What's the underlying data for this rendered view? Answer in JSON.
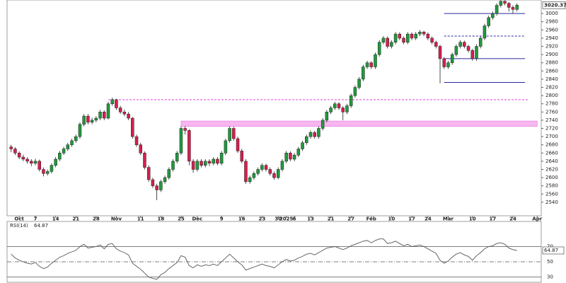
{
  "chart_data": {
    "type": "candlestick",
    "ylim": [
      2507,
      3033
    ],
    "yticks": [
      2540,
      2560,
      2580,
      2600,
      2620,
      2640,
      2660,
      2680,
      2700,
      2720,
      2740,
      2760,
      2780,
      2800,
      2820,
      2840,
      2860,
      2880,
      2900,
      2920,
      2940,
      2960,
      2980,
      3000
    ],
    "xlim": [
      -1,
      131
    ],
    "xticks": [
      {
        "value": 2,
        "label": "Oct"
      },
      {
        "value": 6,
        "label": "7"
      },
      {
        "value": 11,
        "label": "14"
      },
      {
        "value": 16,
        "label": "21"
      },
      {
        "value": 21,
        "label": "28"
      },
      {
        "value": 26,
        "label": "Nov"
      },
      {
        "value": 32,
        "label": "11"
      },
      {
        "value": 37,
        "label": "18"
      },
      {
        "value": 42,
        "label": "25"
      },
      {
        "value": 46,
        "label": "Dec"
      },
      {
        "value": 52,
        "label": "9"
      },
      {
        "value": 57,
        "label": "16"
      },
      {
        "value": 62,
        "label": "23"
      },
      {
        "value": 66,
        "label": "30"
      },
      {
        "value": 68,
        "label": "2025"
      },
      {
        "value": 70,
        "label": "6"
      },
      {
        "value": 74,
        "label": "13"
      },
      {
        "value": 79,
        "label": "21"
      },
      {
        "value": 84,
        "label": "27"
      },
      {
        "value": 89,
        "label": "Feb"
      },
      {
        "value": 94,
        "label": "10"
      },
      {
        "value": 99,
        "label": "17"
      },
      {
        "value": 103,
        "label": "24"
      },
      {
        "value": 108,
        "label": "Mar"
      },
      {
        "value": 114,
        "label": "10"
      },
      {
        "value": 119,
        "label": "17"
      },
      {
        "value": 124,
        "label": "24"
      },
      {
        "value": 130,
        "label": "Apr"
      }
    ],
    "up_color": "#1f9a3e",
    "down_color": "#d81e4f",
    "candles": [
      [
        2675,
        2680,
        2662,
        2670
      ],
      [
        2670,
        2674,
        2655,
        2660
      ],
      [
        2660,
        2664,
        2645,
        2650
      ],
      [
        2650,
        2656,
        2640,
        2645
      ],
      [
        2645,
        2650,
        2634,
        2640
      ],
      [
        2640,
        2645,
        2628,
        2635
      ],
      [
        2635,
        2646,
        2630,
        2640
      ],
      [
        2640,
        2644,
        2615,
        2620
      ],
      [
        2620,
        2625,
        2603,
        2610
      ],
      [
        2610,
        2620,
        2605,
        2615
      ],
      [
        2615,
        2635,
        2610,
        2630
      ],
      [
        2630,
        2650,
        2625,
        2645
      ],
      [
        2645,
        2665,
        2640,
        2660
      ],
      [
        2660,
        2675,
        2655,
        2670
      ],
      [
        2670,
        2685,
        2665,
        2680
      ],
      [
        2680,
        2695,
        2675,
        2690
      ],
      [
        2690,
        2705,
        2685,
        2700
      ],
      [
        2700,
        2735,
        2695,
        2730
      ],
      [
        2730,
        2755,
        2725,
        2750
      ],
      [
        2750,
        2755,
        2730,
        2735
      ],
      [
        2735,
        2746,
        2730,
        2740
      ],
      [
        2740,
        2750,
        2735,
        2745
      ],
      [
        2745,
        2765,
        2740,
        2760
      ],
      [
        2760,
        2764,
        2740,
        2745
      ],
      [
        2745,
        2785,
        2742,
        2780
      ],
      [
        2780,
        2795,
        2775,
        2790
      ],
      [
        2790,
        2792,
        2765,
        2770
      ],
      [
        2770,
        2775,
        2755,
        2760
      ],
      [
        2760,
        2766,
        2750,
        2755
      ],
      [
        2755,
        2760,
        2740,
        2745
      ],
      [
        2745,
        2748,
        2695,
        2700
      ],
      [
        2700,
        2705,
        2675,
        2680
      ],
      [
        2680,
        2685,
        2655,
        2660
      ],
      [
        2660,
        2664,
        2620,
        2625
      ],
      [
        2625,
        2630,
        2590,
        2595
      ],
      [
        2595,
        2600,
        2575,
        2580
      ],
      [
        2580,
        2585,
        2545,
        2570
      ],
      [
        2570,
        2595,
        2565,
        2590
      ],
      [
        2590,
        2605,
        2585,
        2600
      ],
      [
        2600,
        2625,
        2595,
        2620
      ],
      [
        2620,
        2645,
        2615,
        2640
      ],
      [
        2640,
        2665,
        2635,
        2660
      ],
      [
        2660,
        2725,
        2655,
        2720
      ],
      [
        2720,
        2725,
        2705,
        2715
      ],
      [
        2715,
        2718,
        2630,
        2640
      ],
      [
        2640,
        2645,
        2612,
        2620
      ],
      [
        2620,
        2645,
        2615,
        2640
      ],
      [
        2640,
        2645,
        2625,
        2630
      ],
      [
        2630,
        2645,
        2625,
        2640
      ],
      [
        2640,
        2645,
        2628,
        2635
      ],
      [
        2635,
        2650,
        2630,
        2645
      ],
      [
        2645,
        2650,
        2630,
        2635
      ],
      [
        2635,
        2665,
        2630,
        2660
      ],
      [
        2660,
        2695,
        2655,
        2690
      ],
      [
        2690,
        2725,
        2685,
        2720
      ],
      [
        2720,
        2724,
        2690,
        2695
      ],
      [
        2695,
        2700,
        2660,
        2665
      ],
      [
        2665,
        2670,
        2635,
        2640
      ],
      [
        2640,
        2645,
        2585,
        2590
      ],
      [
        2590,
        2605,
        2585,
        2600
      ],
      [
        2600,
        2615,
        2595,
        2610
      ],
      [
        2610,
        2625,
        2605,
        2620
      ],
      [
        2620,
        2635,
        2615,
        2630
      ],
      [
        2630,
        2634,
        2615,
        2620
      ],
      [
        2620,
        2625,
        2605,
        2610
      ],
      [
        2610,
        2615,
        2595,
        2600
      ],
      [
        2600,
        2625,
        2596,
        2620
      ],
      [
        2620,
        2645,
        2615,
        2640
      ],
      [
        2640,
        2665,
        2635,
        2660
      ],
      [
        2660,
        2664,
        2640,
        2645
      ],
      [
        2645,
        2660,
        2640,
        2655
      ],
      [
        2655,
        2675,
        2650,
        2670
      ],
      [
        2670,
        2690,
        2665,
        2685
      ],
      [
        2685,
        2705,
        2680,
        2700
      ],
      [
        2700,
        2715,
        2695,
        2710
      ],
      [
        2710,
        2714,
        2695,
        2700
      ],
      [
        2700,
        2725,
        2695,
        2720
      ],
      [
        2720,
        2745,
        2715,
        2740
      ],
      [
        2740,
        2765,
        2735,
        2760
      ],
      [
        2760,
        2775,
        2755,
        2770
      ],
      [
        2770,
        2785,
        2765,
        2780
      ],
      [
        2780,
        2784,
        2765,
        2770
      ],
      [
        2770,
        2774,
        2740,
        2760
      ],
      [
        2760,
        2780,
        2755,
        2775
      ],
      [
        2775,
        2805,
        2770,
        2800
      ],
      [
        2800,
        2825,
        2795,
        2820
      ],
      [
        2820,
        2845,
        2815,
        2840
      ],
      [
        2840,
        2875,
        2835,
        2870
      ],
      [
        2870,
        2885,
        2865,
        2880
      ],
      [
        2880,
        2884,
        2865,
        2870
      ],
      [
        2870,
        2905,
        2865,
        2900
      ],
      [
        2900,
        2935,
        2895,
        2930
      ],
      [
        2930,
        2945,
        2925,
        2940
      ],
      [
        2940,
        2944,
        2915,
        2920
      ],
      [
        2920,
        2935,
        2915,
        2930
      ],
      [
        2930,
        2955,
        2925,
        2950
      ],
      [
        2950,
        2954,
        2935,
        2940
      ],
      [
        2940,
        2944,
        2925,
        2930
      ],
      [
        2930,
        2955,
        2925,
        2950
      ],
      [
        2950,
        2954,
        2935,
        2940
      ],
      [
        2940,
        2955,
        2935,
        2950
      ],
      [
        2950,
        2960,
        2945,
        2955
      ],
      [
        2955,
        2958,
        2945,
        2950
      ],
      [
        2950,
        2954,
        2935,
        2940
      ],
      [
        2940,
        2944,
        2925,
        2930
      ],
      [
        2930,
        2934,
        2915,
        2920
      ],
      [
        2920,
        2924,
        2830,
        2890
      ],
      [
        2890,
        2894,
        2865,
        2870
      ],
      [
        2870,
        2885,
        2865,
        2880
      ],
      [
        2880,
        2905,
        2875,
        2900
      ],
      [
        2900,
        2925,
        2895,
        2920
      ],
      [
        2920,
        2935,
        2915,
        2930
      ],
      [
        2930,
        2934,
        2915,
        2920
      ],
      [
        2920,
        2924,
        2905,
        2910
      ],
      [
        2910,
        2914,
        2885,
        2890
      ],
      [
        2890,
        2925,
        2885,
        2920
      ],
      [
        2920,
        2945,
        2915,
        2940
      ],
      [
        2940,
        2975,
        2935,
        2970
      ],
      [
        2970,
        2995,
        2965,
        2990
      ],
      [
        2990,
        3005,
        2985,
        3000
      ],
      [
        3000,
        3025,
        2995,
        3020
      ],
      [
        3020,
        3032,
        3015,
        3030
      ],
      [
        3030,
        3032,
        3020,
        3025
      ],
      [
        3025,
        3028,
        3005,
        3015
      ],
      [
        3015,
        3020,
        3000,
        3010
      ],
      [
        3010,
        3025,
        3005,
        3020.37
      ]
    ],
    "levels": [
      {
        "value": 2790,
        "from": 24,
        "to": 128,
        "color": "#e040e0",
        "dash": true
      },
      {
        "value": 3000,
        "from": 107,
        "to": 127,
        "color": "#2a2aa0",
        "dash": false
      },
      {
        "value": 2945,
        "from": 107,
        "to": 127,
        "color": "#2a2aa0",
        "dash": true
      },
      {
        "value": 2890,
        "from": 107,
        "to": 127,
        "color": "#2a2aa0",
        "dash": false
      },
      {
        "value": 2832,
        "from": 107,
        "to": 127,
        "color": "#2a2aa0",
        "dash": false
      }
    ],
    "bands": [
      {
        "low": 2725,
        "high": 2738,
        "from": 42,
        "to": 130,
        "color": "#f7b6ef"
      }
    ],
    "rsi": {
      "name": "RSI(14)",
      "color": "#555555",
      "ylim": [
        23,
        103
      ],
      "yticks": [
        70,
        50,
        30
      ],
      "values": [
        60,
        55,
        52,
        50,
        48,
        47,
        49,
        44,
        41,
        43,
        48,
        52,
        56,
        58,
        61,
        63,
        65,
        70,
        73,
        68,
        69,
        70,
        72,
        67,
        73,
        74,
        67,
        64,
        62,
        59,
        48,
        44,
        40,
        35,
        30,
        28,
        27,
        33,
        36,
        41,
        45,
        49,
        58,
        56,
        45,
        42,
        46,
        44,
        46,
        45,
        47,
        45,
        50,
        55,
        60,
        55,
        50,
        46,
        39,
        41,
        43,
        45,
        47,
        45,
        44,
        42,
        46,
        50,
        53,
        51,
        52,
        55,
        57,
        60,
        61,
        59,
        62,
        65,
        68,
        69,
        70,
        68,
        66,
        68,
        71,
        73,
        75,
        77,
        78,
        75,
        78,
        80,
        80,
        74,
        75,
        77,
        74,
        71,
        73,
        70,
        71,
        72,
        70,
        67,
        64,
        61,
        52,
        48,
        51,
        56,
        60,
        62,
        59,
        57,
        52,
        58,
        62,
        67,
        70,
        71,
        74,
        75,
        73,
        68,
        66,
        64.87
      ]
    }
  }
}
